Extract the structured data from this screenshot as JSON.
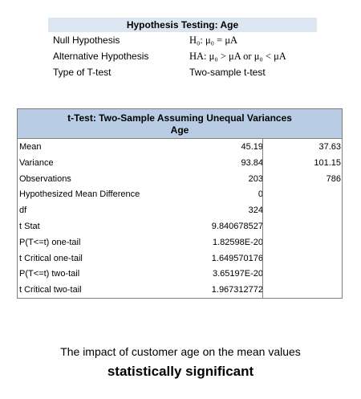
{
  "hypothesis": {
    "title": "Hypothesis Testing: Age",
    "rows": [
      {
        "label": "Null Hypothesis",
        "value": "H₀: μ₀ = μA"
      },
      {
        "label": "Alternative Hypothesis",
        "value": "HA: μ₀ > μA or μ₀ < μA"
      },
      {
        "label": "Type of T-test",
        "value": "Two-sample t-test"
      }
    ]
  },
  "ttest": {
    "title": "t-Test: Two-Sample Assuming Unequal Variances",
    "subtitle": "Age",
    "rows": [
      {
        "label": "Mean",
        "v1": "45.19",
        "v2": "37.63"
      },
      {
        "label": "Variance",
        "v1": "93.84",
        "v2": "101.15"
      },
      {
        "label": "Observations",
        "v1": "203",
        "v2": "786"
      },
      {
        "label": "Hypothesized Mean Difference",
        "v1": "0",
        "v2": ""
      },
      {
        "label": "df",
        "v1": "324",
        "v2": ""
      },
      {
        "label": "t Stat",
        "v1": "9.840678527",
        "v2": ""
      },
      {
        "label": "P(T<=t) one-tail",
        "v1": "1.82598E-20",
        "v2": ""
      },
      {
        "label": "t Critical one-tail",
        "v1": "1.649570176",
        "v2": ""
      },
      {
        "label": "P(T<=t) two-tail",
        "v1": "3.65197E-20",
        "v2": ""
      },
      {
        "label": "t Critical two-tail",
        "v1": "1.967312772",
        "v2": ""
      }
    ]
  },
  "conclusion": {
    "line1": "The impact of customer age on the mean values",
    "line2": "statistically significant"
  }
}
